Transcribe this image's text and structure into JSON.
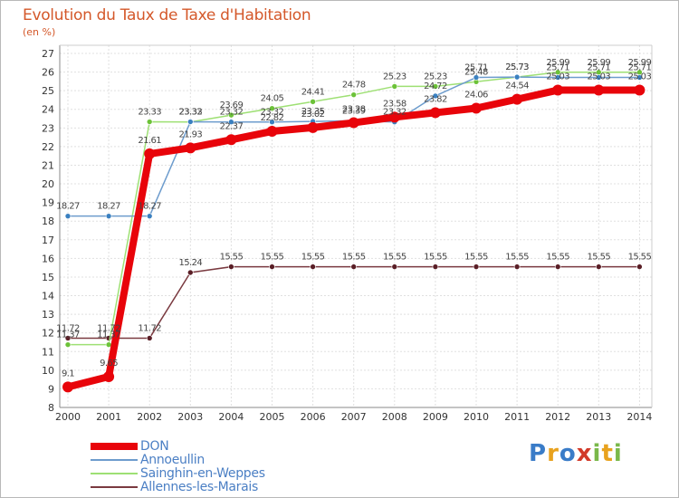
{
  "title": "Evolution du Taux de Taxe d'Habitation",
  "unit": "(en %)",
  "logo": {
    "letters": [
      "P",
      "r",
      "o",
      "x",
      "i",
      "t",
      "i"
    ],
    "colors": [
      "#3a7cc8",
      "#e8a21e",
      "#3a7cc8",
      "#d23a2a",
      "#7ab84a",
      "#e8a21e",
      "#7ab84a"
    ]
  },
  "chart_data": {
    "type": "line",
    "title": "Evolution du Taux de Taxe d'Habitation",
    "ylabel": "(en %)",
    "xlabel": "",
    "x": [
      "2000",
      "2001",
      "2002",
      "2003",
      "2004",
      "2005",
      "2006",
      "2007",
      "2008",
      "2009",
      "2010",
      "2011",
      "2012",
      "2013",
      "2014"
    ],
    "ylim": [
      8,
      27
    ],
    "yticks": [
      8,
      9,
      10,
      11,
      12,
      13,
      14,
      15,
      16,
      17,
      18,
      19,
      20,
      21,
      22,
      23,
      24,
      25,
      26,
      27
    ],
    "grid": true,
    "legend_position": "bottom-left",
    "series": [
      {
        "name": "DON",
        "color": "#e8040a",
        "width": 8,
        "marker": "#e8040a",
        "values": [
          9.1,
          9.65,
          21.61,
          21.93,
          22.37,
          22.82,
          23.02,
          23.28,
          23.58,
          23.82,
          24.06,
          24.54,
          25.03,
          25.03,
          25.03
        ],
        "labels": [
          "9.1",
          "9.65",
          "21.61",
          "21.93",
          "22.37",
          "22.82",
          "23.02",
          "23.28",
          "23.58",
          "23.82",
          "24.06",
          "24.54",
          "25.03",
          "25.03",
          "25.03"
        ]
      },
      {
        "name": "Annoeullin",
        "color": "#6d9ccd",
        "width": 1.5,
        "marker": "#3a80c0",
        "values": [
          18.27,
          18.27,
          18.27,
          23.33,
          23.32,
          23.32,
          23.35,
          23.39,
          23.32,
          24.72,
          25.71,
          25.73,
          25.71,
          25.71,
          25.71
        ],
        "labels": [
          "18.27",
          "18.27",
          "18.27",
          "23.33",
          "23.32",
          "23.32",
          "23.35",
          "23.39",
          "23.32",
          "24.72",
          "25.71",
          "25.73",
          "25.71",
          "25.71",
          "25.71"
        ]
      },
      {
        "name": "Sainghin-en-Weppes",
        "color": "#9ee074",
        "width": 1.5,
        "marker": "#6cc238",
        "values": [
          11.37,
          11.37,
          23.33,
          23.32,
          23.69,
          24.05,
          24.41,
          24.78,
          25.23,
          25.23,
          25.48,
          25.73,
          25.99,
          25.99,
          25.99
        ],
        "labels": [
          "11.37",
          "11.37",
          "23.33",
          "23.32",
          "23.69",
          "24.05",
          "24.41",
          "24.78",
          "25.23",
          "25.23",
          "25.48",
          "25.73",
          "25.99",
          "25.99",
          "25.99"
        ]
      },
      {
        "name": "Allennes-les-Marais",
        "color": "#7a3a40",
        "width": 1.5,
        "marker": "#5a1e26",
        "values": [
          11.72,
          11.72,
          11.72,
          15.24,
          15.55,
          15.55,
          15.55,
          15.55,
          15.55,
          15.55,
          15.55,
          15.55,
          15.55,
          15.55,
          15.55
        ],
        "labels": [
          "11.72",
          "11.72",
          "11.72",
          "15.24",
          "15.55",
          "15.55",
          "15.55",
          "15.55",
          "15.55",
          "15.55",
          "15.55",
          "15.55",
          "15.55",
          "15.55",
          "15.55"
        ]
      }
    ]
  }
}
